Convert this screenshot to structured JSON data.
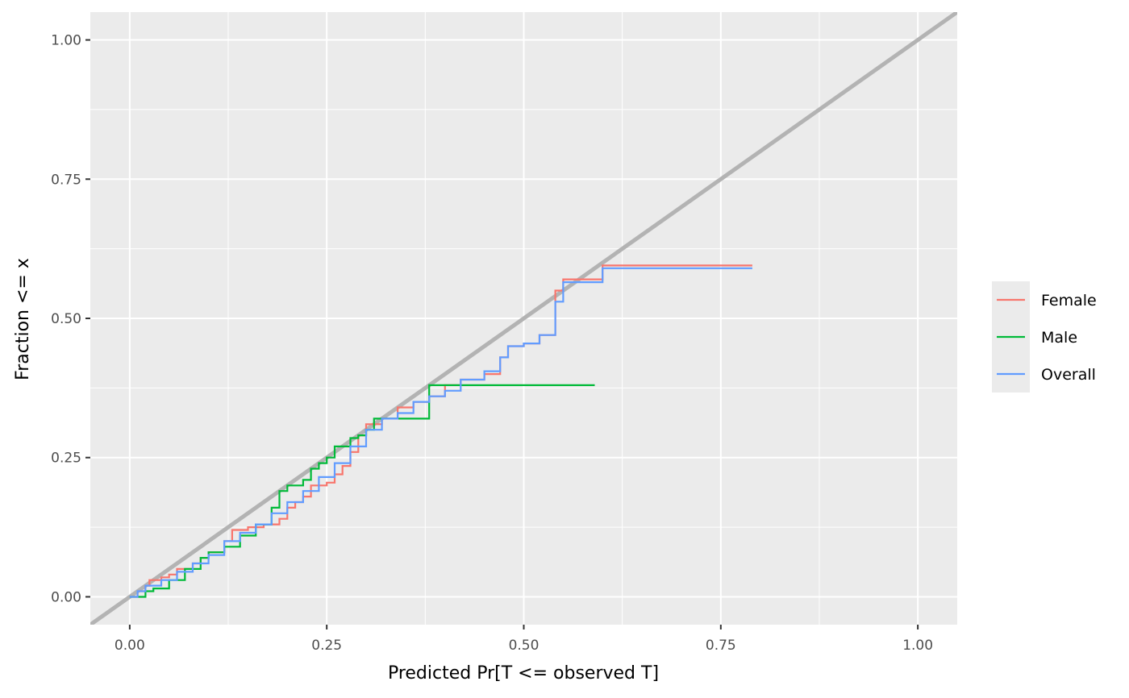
{
  "chart_data": {
    "type": "line",
    "title": "",
    "xlabel": "Predicted Pr[T <= observed T]",
    "ylabel": "Fraction <= x",
    "xlim": [
      -0.05,
      1.05
    ],
    "ylim": [
      -0.05,
      1.05
    ],
    "x_ticks": [
      0,
      0.25,
      0.5,
      0.75,
      1
    ],
    "x_tick_labels": [
      "0.00",
      "0.25",
      "0.50",
      "0.75",
      "1.00"
    ],
    "y_ticks": [
      0,
      0.25,
      0.5,
      0.75,
      1
    ],
    "y_tick_labels": [
      "0.00",
      "0.25",
      "0.50",
      "0.75",
      "1.00"
    ],
    "grid": true,
    "legend_position": "right",
    "reference_line": {
      "type": "identity",
      "color": "#b3b3b3"
    },
    "series": [
      {
        "name": "Female",
        "color": "#F8766D",
        "step": true,
        "x": [
          0,
          0.01,
          0.02,
          0.025,
          0.04,
          0.05,
          0.06,
          0.08,
          0.09,
          0.1,
          0.12,
          0.13,
          0.15,
          0.17,
          0.19,
          0.2,
          0.21,
          0.22,
          0.23,
          0.25,
          0.26,
          0.27,
          0.28,
          0.29,
          0.3,
          0.32,
          0.34,
          0.36,
          0.38,
          0.4,
          0.42,
          0.45,
          0.47,
          0.48,
          0.5,
          0.52,
          0.54,
          0.55,
          0.6,
          0.79
        ],
        "y": [
          0,
          0.01,
          0.02,
          0.03,
          0.035,
          0.04,
          0.05,
          0.06,
          0.07,
          0.08,
          0.1,
          0.12,
          0.125,
          0.13,
          0.14,
          0.16,
          0.17,
          0.18,
          0.2,
          0.205,
          0.22,
          0.235,
          0.26,
          0.29,
          0.31,
          0.32,
          0.34,
          0.35,
          0.36,
          0.38,
          0.39,
          0.4,
          0.43,
          0.45,
          0.455,
          0.47,
          0.55,
          0.57,
          0.595,
          0.595
        ]
      },
      {
        "name": "Male",
        "color": "#00BA38",
        "step": true,
        "x": [
          0,
          0.02,
          0.03,
          0.05,
          0.07,
          0.09,
          0.1,
          0.12,
          0.14,
          0.16,
          0.18,
          0.19,
          0.2,
          0.22,
          0.23,
          0.24,
          0.25,
          0.26,
          0.28,
          0.29,
          0.3,
          0.31,
          0.35,
          0.38,
          0.45,
          0.59
        ],
        "y": [
          0,
          0.01,
          0.015,
          0.03,
          0.05,
          0.07,
          0.08,
          0.09,
          0.11,
          0.13,
          0.16,
          0.19,
          0.2,
          0.21,
          0.23,
          0.24,
          0.25,
          0.27,
          0.285,
          0.29,
          0.3,
          0.32,
          0.32,
          0.38,
          0.38,
          0.38
        ]
      },
      {
        "name": "Overall",
        "color": "#619CFF",
        "step": true,
        "x": [
          0,
          0.01,
          0.02,
          0.04,
          0.06,
          0.08,
          0.1,
          0.12,
          0.14,
          0.16,
          0.18,
          0.2,
          0.22,
          0.24,
          0.26,
          0.28,
          0.3,
          0.32,
          0.34,
          0.36,
          0.38,
          0.4,
          0.42,
          0.45,
          0.47,
          0.48,
          0.5,
          0.52,
          0.54,
          0.55,
          0.6,
          0.79
        ],
        "y": [
          0,
          0.01,
          0.02,
          0.03,
          0.045,
          0.06,
          0.075,
          0.1,
          0.115,
          0.13,
          0.15,
          0.17,
          0.19,
          0.215,
          0.24,
          0.27,
          0.3,
          0.32,
          0.33,
          0.35,
          0.36,
          0.37,
          0.39,
          0.405,
          0.43,
          0.45,
          0.455,
          0.47,
          0.53,
          0.565,
          0.59,
          0.59
        ]
      }
    ]
  }
}
